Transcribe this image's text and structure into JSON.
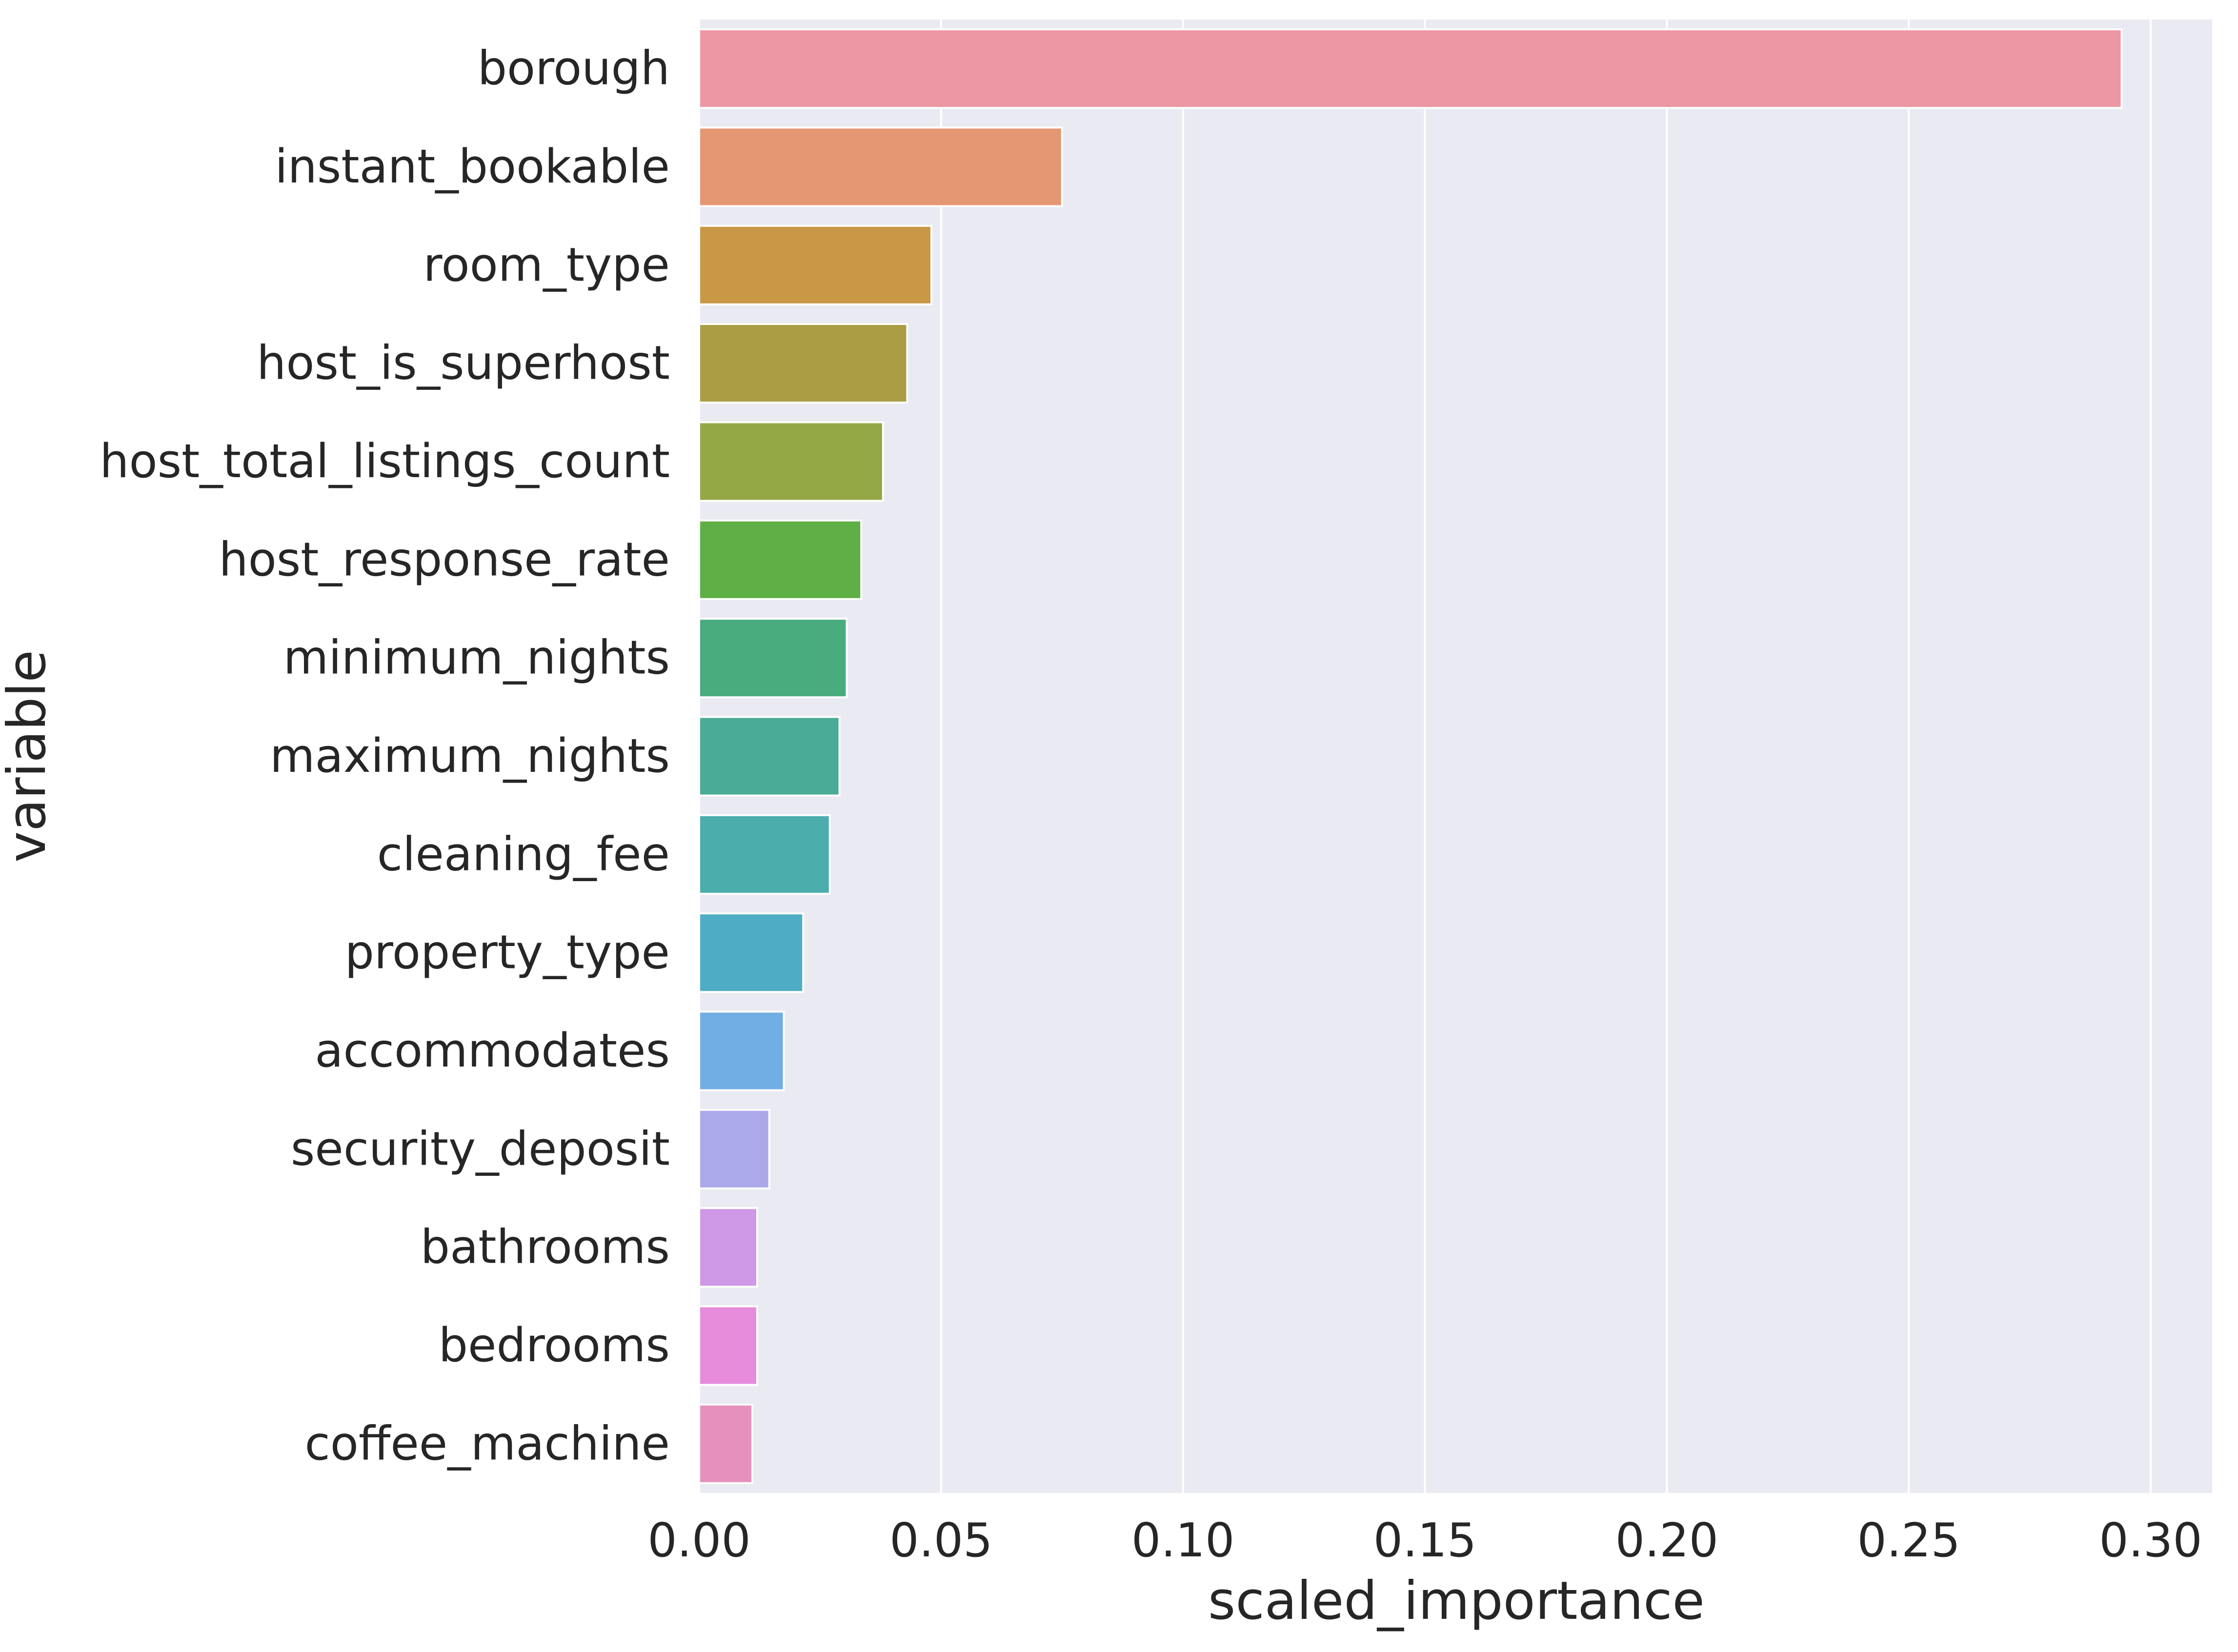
{
  "chart_data": {
    "type": "bar",
    "orientation": "horizontal",
    "title": "",
    "xlabel": "scaled_importance",
    "ylabel": "variable",
    "xlim": [
      0,
      0.305
    ],
    "xticks": [
      0.0,
      0.05,
      0.1,
      0.15,
      0.2,
      0.25,
      0.3
    ],
    "xtick_labels": [
      "0.00",
      "0.05",
      "0.10",
      "0.15",
      "0.20",
      "0.25",
      "0.30"
    ],
    "grid": true,
    "background": "#eaeaf2",
    "categories": [
      "borough",
      "instant_bookable",
      "room_type",
      "host_is_superhost",
      "host_total_listings_count",
      "host_response_rate",
      "minimum_nights",
      "maximum_nights",
      "cleaning_fee",
      "property_type",
      "accommodates",
      "security_deposit",
      "bathrooms",
      "bedrooms",
      "coffee_machine"
    ],
    "values": [
      0.294,
      0.075,
      0.048,
      0.043,
      0.038,
      0.0335,
      0.0305,
      0.029,
      0.027,
      0.0215,
      0.0175,
      0.0145,
      0.012,
      0.012,
      0.011
    ],
    "colors": [
      "#ec97a3",
      "#e59672",
      "#c99846",
      "#aa9d44",
      "#93a745",
      "#5eaf46",
      "#48ac7f",
      "#4aab96",
      "#4cadad",
      "#4eadc5",
      "#71aee4",
      "#aaaaea",
      "#cf98e6",
      "#e68cdb",
      "#e691bd"
    ]
  }
}
